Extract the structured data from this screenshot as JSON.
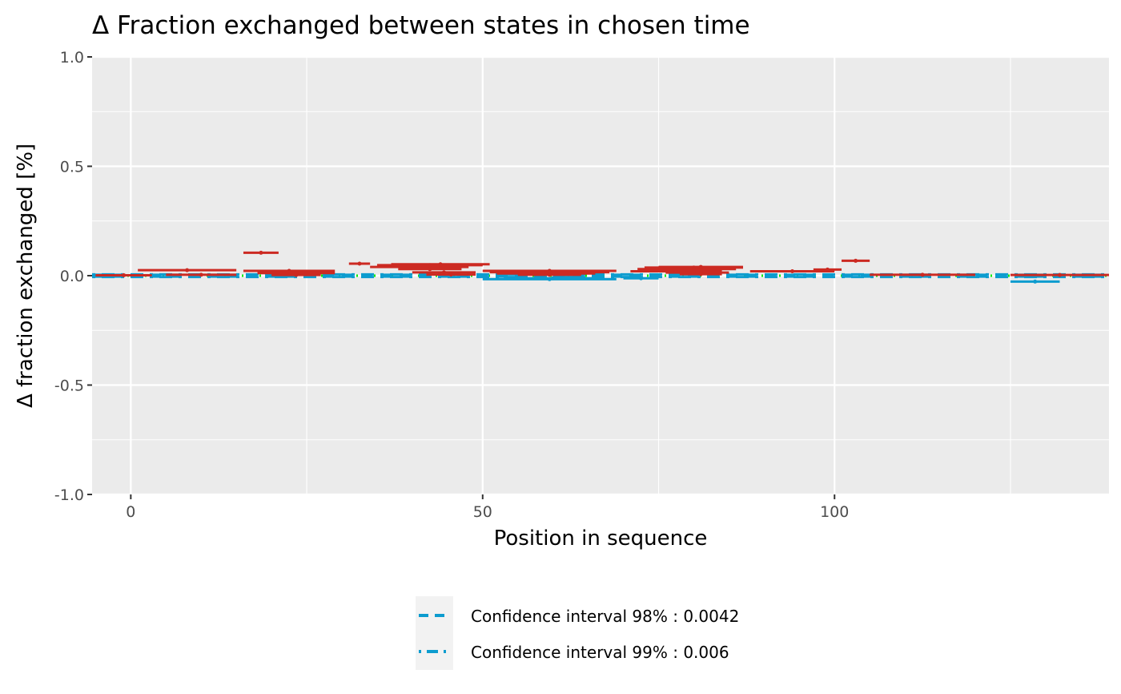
{
  "chart_data": {
    "type": "scatter",
    "title": "Δ Fraction exchanged between states in chosen time",
    "xlabel": "Position in sequence",
    "ylabel": "Δ fraction exchanged [%]",
    "xlim": [
      -5.5,
      139
    ],
    "ylim": [
      -1.0,
      1.0
    ],
    "x_ticks": [
      0,
      50,
      100
    ],
    "x_tick_labels": [
      "0",
      "50",
      "100"
    ],
    "y_ticks": [
      1.0,
      0.5,
      0.0,
      -0.5,
      -1.0
    ],
    "y_tick_labels": [
      "1.0",
      "0.5",
      "0.0",
      "-0.5",
      "-1.0"
    ],
    "grid": true,
    "legend_position": "bottom",
    "colors": {
      "positive": "#cc2a22",
      "negative": "#0d9ccf",
      "threshold": "#00ee00",
      "panel": "#ebebeb",
      "gridline": "#ffffff"
    },
    "thresholds": [
      {
        "name": "Confidence interval 98% : 0.0042",
        "value": 0.0042,
        "color": "#0d9ccf",
        "dash": "dashed"
      },
      {
        "name": "Confidence interval 99% : 0.006",
        "value": 0.006,
        "color": "#0d9ccf",
        "dash": "dotdash"
      }
    ],
    "peptides": [
      {
        "start": -5,
        "end": 3,
        "value": 0.002
      },
      {
        "start": 1,
        "end": 15,
        "value": 0.025
      },
      {
        "start": 5,
        "end": 15,
        "value": 0.004
      },
      {
        "start": 16,
        "end": 21,
        "value": 0.105
      },
      {
        "start": 16,
        "end": 29,
        "value": 0.022
      },
      {
        "start": 18,
        "end": 29,
        "value": 0.012
      },
      {
        "start": 20,
        "end": 27,
        "value": 0.003
      },
      {
        "start": 31,
        "end": 34,
        "value": 0.055
      },
      {
        "start": 34,
        "end": 48,
        "value": 0.04
      },
      {
        "start": 35,
        "end": 50,
        "value": 0.048
      },
      {
        "start": 37,
        "end": 51,
        "value": 0.052
      },
      {
        "start": 38,
        "end": 47,
        "value": 0.03
      },
      {
        "start": 40,
        "end": 49,
        "value": 0.015
      },
      {
        "start": 42,
        "end": 49,
        "value": 0.005
      },
      {
        "start": 50,
        "end": 69,
        "value": 0.022
      },
      {
        "start": 51,
        "end": 68,
        "value": 0.016
      },
      {
        "start": 52,
        "end": 66,
        "value": 0.01
      },
      {
        "start": 55,
        "end": 64,
        "value": 0.004
      },
      {
        "start": 50,
        "end": 69,
        "value": -0.016
      },
      {
        "start": 53,
        "end": 67,
        "value": -0.012
      },
      {
        "start": 70,
        "end": 75,
        "value": -0.012
      },
      {
        "start": 71,
        "end": 84,
        "value": 0.02
      },
      {
        "start": 72,
        "end": 86,
        "value": 0.03
      },
      {
        "start": 73,
        "end": 87,
        "value": 0.037
      },
      {
        "start": 75,
        "end": 87,
        "value": 0.04
      },
      {
        "start": 76,
        "end": 85,
        "value": 0.014
      },
      {
        "start": 78,
        "end": 84,
        "value": 0.007
      },
      {
        "start": 88,
        "end": 100,
        "value": 0.02
      },
      {
        "start": 97,
        "end": 101,
        "value": 0.028
      },
      {
        "start": 101,
        "end": 105,
        "value": 0.068
      },
      {
        "start": 105,
        "end": 120,
        "value": 0.004
      },
      {
        "start": 125,
        "end": 132,
        "value": -0.027
      },
      {
        "start": 125,
        "end": 139,
        "value": 0.003
      }
    ]
  }
}
